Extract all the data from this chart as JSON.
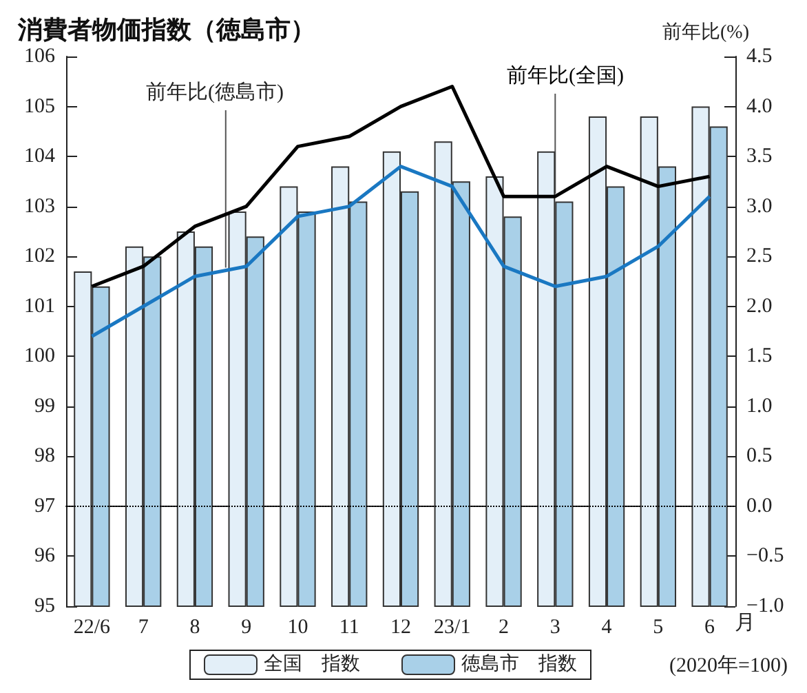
{
  "chart_data": {
    "type": "bar",
    "title": "消費者物価指数（徳島市）",
    "categories": [
      "22/6",
      "7",
      "8",
      "9",
      "10",
      "11",
      "12",
      "23/1",
      "2",
      "3",
      "4",
      "5",
      "6"
    ],
    "xlabel": "月",
    "y2label": "前年比(%)",
    "series": [
      {
        "name": "全国　指数",
        "color": "#e3eff8",
        "values": [
          101.7,
          102.2,
          102.5,
          102.9,
          103.4,
          103.8,
          104.1,
          104.3,
          103.6,
          104.1,
          104.8,
          104.8,
          105.0
        ]
      },
      {
        "name": "徳島市　指数",
        "color": "#a9d0e8",
        "values": [
          101.4,
          102.0,
          102.2,
          102.4,
          102.9,
          103.1,
          103.3,
          103.5,
          102.8,
          103.1,
          103.4,
          103.8,
          104.6
        ]
      },
      {
        "name": "前年比(全国)",
        "type": "line",
        "axis": "y2",
        "color": "#000000",
        "values": [
          2.2,
          2.4,
          2.8,
          3.0,
          3.6,
          3.7,
          4.0,
          4.2,
          3.1,
          3.1,
          3.4,
          3.2,
          3.3
        ]
      },
      {
        "name": "前年比(徳島市)",
        "type": "line",
        "axis": "y2",
        "color": "#1a78c2",
        "values": [
          1.7,
          2.0,
          2.3,
          2.4,
          2.9,
          3.0,
          3.4,
          3.2,
          2.4,
          2.2,
          2.3,
          2.6,
          3.1
        ]
      }
    ],
    "ylim": [
      95,
      106
    ],
    "yticks": [
      95,
      96,
      97,
      98,
      99,
      100,
      101,
      102,
      103,
      104,
      105,
      106
    ],
    "y2lim": [
      -1.0,
      4.5
    ],
    "y2ticks": [
      {
        "value": -1.0,
        "label": "−1.0"
      },
      {
        "value": -0.5,
        "label": "−0.5"
      },
      {
        "value": 0,
        "label": "0.0"
      },
      {
        "value": 0.5,
        "label": "0.5"
      },
      {
        "value": 1.0,
        "label": "1.0"
      },
      {
        "value": 1.5,
        "label": "1.5"
      },
      {
        "value": 2.0,
        "label": "2.0"
      },
      {
        "value": 2.5,
        "label": "2.5"
      },
      {
        "value": 3.0,
        "label": "3.0"
      },
      {
        "value": 3.5,
        "label": "3.5"
      },
      {
        "value": 4.0,
        "label": "4.0"
      },
      {
        "value": 4.5,
        "label": "4.5"
      }
    ],
    "ref_lines": [
      {
        "axis": "y",
        "value": 97,
        "label": null,
        "color": "#000000",
        "line_style": "dotted"
      }
    ],
    "annotations": [
      "(2020年=100)"
    ],
    "legend": "bottom",
    "grid": false,
    "marker": "none",
    "line_style": "solid"
  }
}
